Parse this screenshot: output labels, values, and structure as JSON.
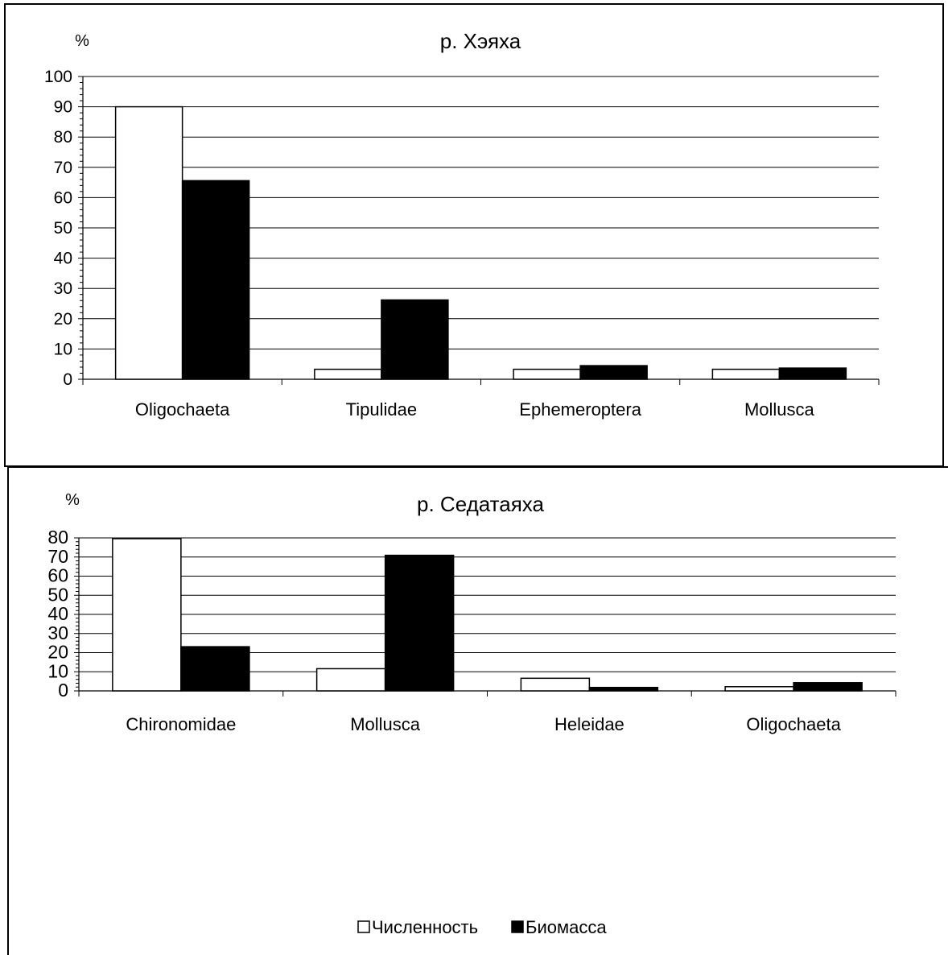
{
  "chart_data": [
    {
      "type": "bar",
      "title": "р. Хэяха",
      "ylabel": "%",
      "ylim": [
        0,
        100
      ],
      "yticks": [
        0,
        10,
        20,
        30,
        40,
        50,
        60,
        70,
        80,
        90,
        100
      ],
      "grid": true,
      "categories": [
        "Oligochaeta",
        "Tipulidae",
        "Ephemeroptera",
        "Mollusca"
      ],
      "series": [
        {
          "name": "Численность",
          "color": "#ffffff",
          "values": [
            90,
            3.3,
            3.3,
            3.3
          ]
        },
        {
          "name": "Биомасса",
          "color": "#000000",
          "values": [
            65.6,
            26.2,
            4.5,
            3.7
          ]
        }
      ]
    },
    {
      "type": "bar",
      "title": "р. Седатаяха",
      "ylabel": "%",
      "ylim": [
        0,
        80
      ],
      "yticks": [
        0,
        10,
        20,
        30,
        40,
        50,
        60,
        70,
        80
      ],
      "grid": true,
      "categories": [
        "Chironomidae",
        "Mollusca",
        "Heleidae",
        "Oligochaeta"
      ],
      "series": [
        {
          "name": "Численность",
          "color": "#ffffff",
          "values": [
            79.6,
            11.6,
            6.6,
            2.2
          ]
        },
        {
          "name": "Биомасса",
          "color": "#000000",
          "values": [
            23.1,
            70.9,
            1.8,
            4.3
          ]
        }
      ],
      "legend": {
        "position": "bottom",
        "items": [
          "Численность",
          "Биомасса"
        ]
      }
    }
  ]
}
